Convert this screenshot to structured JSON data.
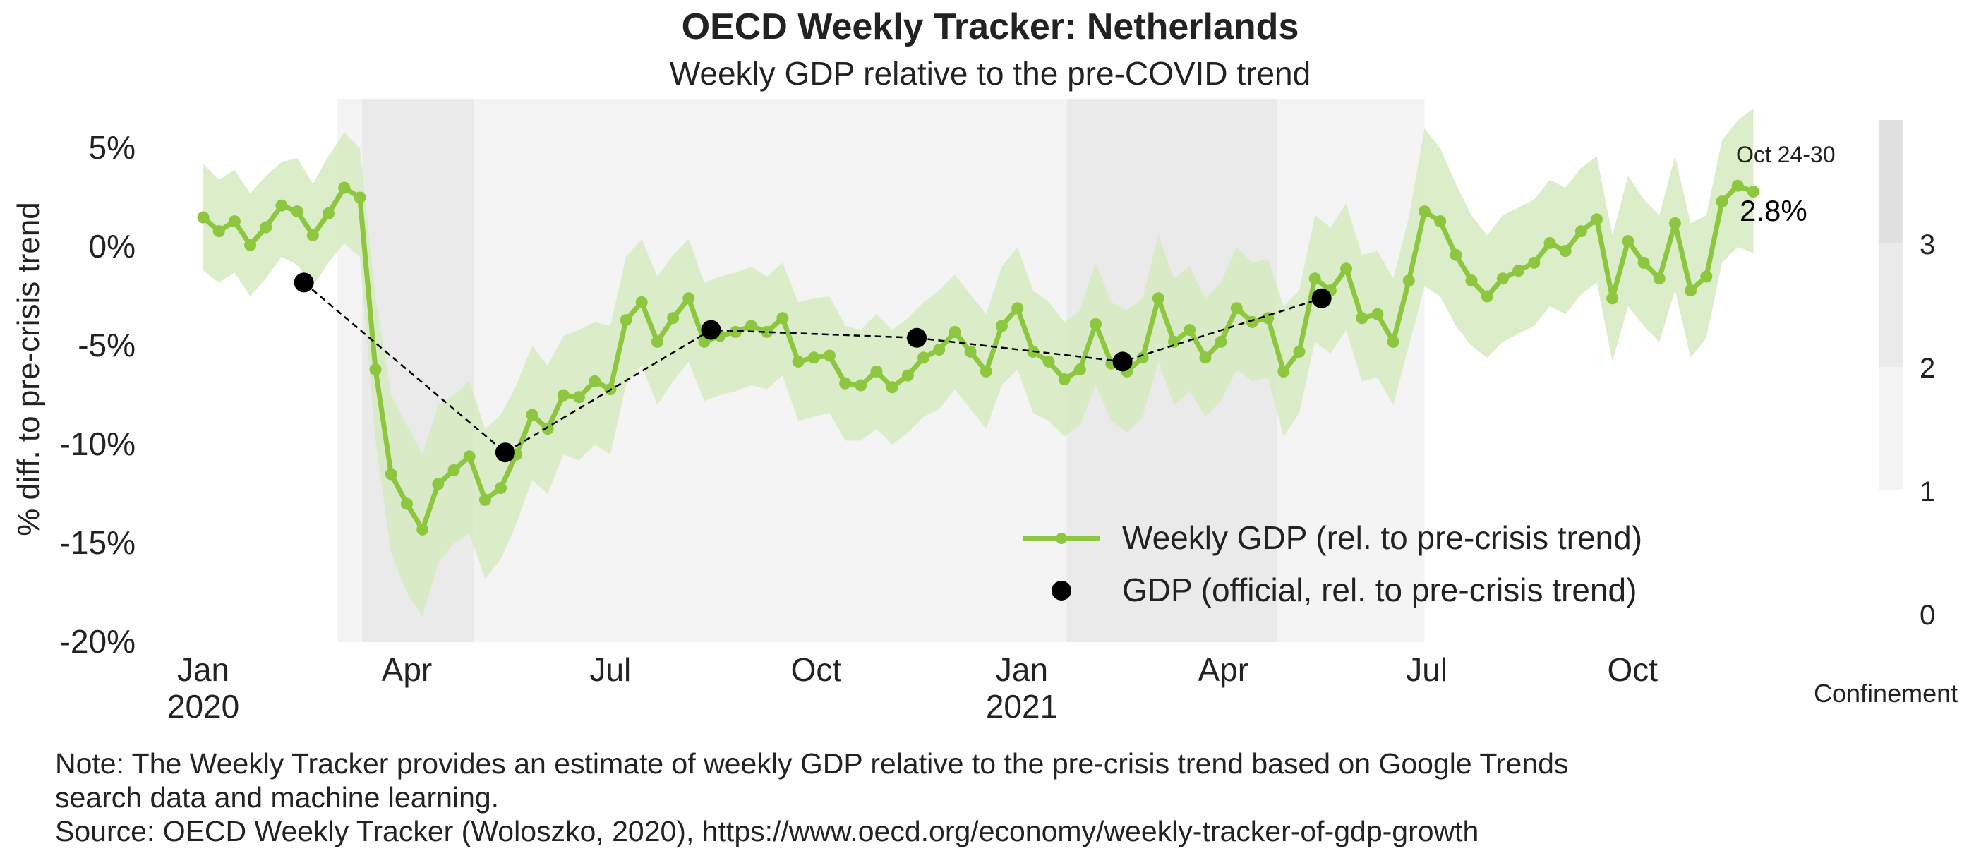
{
  "chart_data": {
    "type": "line",
    "title": "OECD Weekly Tracker: Netherlands",
    "subtitle": "Weekly GDP relative to the pre-COVID trend",
    "ylabel": "% diff. to pre-crisis trend",
    "xlabel": "",
    "ylim": [
      -20,
      7.5
    ],
    "yticks": [
      5,
      0,
      -5,
      -10,
      -15,
      -20
    ],
    "ytick_labels": [
      "5%",
      "0%",
      "-5%",
      "-10%",
      "-15%",
      "-20%"
    ],
    "xlim": [
      "2019-12-20",
      "2021-11-10"
    ],
    "xticks": [
      {
        "date": "2020-01-01",
        "label": "Jan",
        "sublabel": "2020"
      },
      {
        "date": "2020-04-01",
        "label": "Apr",
        "sublabel": ""
      },
      {
        "date": "2020-07-01",
        "label": "Jul",
        "sublabel": ""
      },
      {
        "date": "2020-10-01",
        "label": "Oct",
        "sublabel": ""
      },
      {
        "date": "2021-01-01",
        "label": "Jan",
        "sublabel": "2021"
      },
      {
        "date": "2021-04-01",
        "label": "Apr",
        "sublabel": ""
      },
      {
        "date": "2021-07-01",
        "label": "Jul",
        "sublabel": ""
      },
      {
        "date": "2021-10-01",
        "label": "Oct",
        "sublabel": ""
      }
    ],
    "grid": false,
    "legend_position": "bottom-right",
    "series": [
      {
        "name": "Weekly GDP (rel. to pre-crisis trend)",
        "kind": "line-markers",
        "color": "#8dc63f",
        "band_color": "#d6ebbf",
        "points": [
          {
            "x": "2020-01-01",
            "y": 1.5,
            "lo": -1.2,
            "hi": 4.2
          },
          {
            "x": "2020-01-08",
            "y": 0.8,
            "lo": -1.8,
            "hi": 3.4
          },
          {
            "x": "2020-01-15",
            "y": 1.3,
            "lo": -1.3,
            "hi": 3.9
          },
          {
            "x": "2020-01-22",
            "y": 0.1,
            "lo": -2.5,
            "hi": 2.7
          },
          {
            "x": "2020-01-29",
            "y": 1.0,
            "lo": -1.6,
            "hi": 3.6
          },
          {
            "x": "2020-02-05",
            "y": 2.1,
            "lo": -0.5,
            "hi": 4.3
          },
          {
            "x": "2020-02-12",
            "y": 1.8,
            "lo": -0.9,
            "hi": 4.5
          },
          {
            "x": "2020-02-19",
            "y": 0.6,
            "lo": -2.0,
            "hi": 3.2
          },
          {
            "x": "2020-02-26",
            "y": 1.7,
            "lo": -0.8,
            "hi": 4.6
          },
          {
            "x": "2020-03-04",
            "y": 3.0,
            "lo": 0.2,
            "hi": 5.8
          },
          {
            "x": "2020-03-11",
            "y": 2.5,
            "lo": -0.5,
            "hi": 5.0
          },
          {
            "x": "2020-03-18",
            "y": -6.2,
            "lo": -9.8,
            "hi": -2.6
          },
          {
            "x": "2020-03-25",
            "y": -11.5,
            "lo": -15.5,
            "hi": -7.5
          },
          {
            "x": "2020-04-01",
            "y": -13.0,
            "lo": -17.5,
            "hi": -9.0
          },
          {
            "x": "2020-04-08",
            "y": -14.3,
            "lo": -18.7,
            "hi": -10.5
          },
          {
            "x": "2020-04-15",
            "y": -12.0,
            "lo": -16.0,
            "hi": -8.0
          },
          {
            "x": "2020-04-22",
            "y": -11.3,
            "lo": -15.0,
            "hi": -7.5
          },
          {
            "x": "2020-04-29",
            "y": -10.6,
            "lo": -14.5,
            "hi": -6.8
          },
          {
            "x": "2020-05-06",
            "y": -12.8,
            "lo": -16.8,
            "hi": -9.2
          },
          {
            "x": "2020-05-13",
            "y": -12.2,
            "lo": -15.8,
            "hi": -8.5
          },
          {
            "x": "2020-05-20",
            "y": -10.5,
            "lo": -14.0,
            "hi": -7.0
          },
          {
            "x": "2020-05-27",
            "y": -8.5,
            "lo": -11.8,
            "hi": -5.0
          },
          {
            "x": "2020-06-03",
            "y": -9.2,
            "lo": -12.5,
            "hi": -6.0
          },
          {
            "x": "2020-06-10",
            "y": -7.5,
            "lo": -10.5,
            "hi": -4.5
          },
          {
            "x": "2020-06-17",
            "y": -7.6,
            "lo": -10.8,
            "hi": -4.2
          },
          {
            "x": "2020-06-24",
            "y": -6.8,
            "lo": -10.0,
            "hi": -3.8
          },
          {
            "x": "2020-07-01",
            "y": -7.2,
            "lo": -10.5,
            "hi": -4.0
          },
          {
            "x": "2020-07-08",
            "y": -3.7,
            "lo": -7.0,
            "hi": -0.5
          },
          {
            "x": "2020-07-15",
            "y": -2.8,
            "lo": -6.0,
            "hi": 0.4
          },
          {
            "x": "2020-07-22",
            "y": -4.8,
            "lo": -8.0,
            "hi": -1.5
          },
          {
            "x": "2020-07-29",
            "y": -3.6,
            "lo": -6.8,
            "hi": -0.4
          },
          {
            "x": "2020-08-05",
            "y": -2.6,
            "lo": -5.8,
            "hi": 0.4
          },
          {
            "x": "2020-08-12",
            "y": -4.8,
            "lo": -7.8,
            "hi": -1.8
          },
          {
            "x": "2020-08-19",
            "y": -4.5,
            "lo": -7.5,
            "hi": -1.5
          },
          {
            "x": "2020-08-26",
            "y": -4.3,
            "lo": -7.3,
            "hi": -1.3
          },
          {
            "x": "2020-09-02",
            "y": -4.0,
            "lo": -7.0,
            "hi": -1.0
          },
          {
            "x": "2020-09-09",
            "y": -4.3,
            "lo": -7.2,
            "hi": -1.5
          },
          {
            "x": "2020-09-16",
            "y": -3.6,
            "lo": -6.5,
            "hi": -0.8
          },
          {
            "x": "2020-09-23",
            "y": -5.8,
            "lo": -8.8,
            "hi": -2.8
          },
          {
            "x": "2020-09-30",
            "y": -5.6,
            "lo": -8.6,
            "hi": -2.6
          },
          {
            "x": "2020-10-07",
            "y": -5.5,
            "lo": -8.4,
            "hi": -2.5
          },
          {
            "x": "2020-10-14",
            "y": -6.9,
            "lo": -9.8,
            "hi": -4.0
          },
          {
            "x": "2020-10-21",
            "y": -7.0,
            "lo": -9.8,
            "hi": -4.2
          },
          {
            "x": "2020-10-28",
            "y": -6.3,
            "lo": -9.2,
            "hi": -3.4
          },
          {
            "x": "2020-11-04",
            "y": -7.1,
            "lo": -10.0,
            "hi": -4.2
          },
          {
            "x": "2020-11-11",
            "y": -6.5,
            "lo": -9.4,
            "hi": -3.6
          },
          {
            "x": "2020-11-18",
            "y": -5.6,
            "lo": -8.6,
            "hi": -2.8
          },
          {
            "x": "2020-11-25",
            "y": -5.2,
            "lo": -8.2,
            "hi": -2.2
          },
          {
            "x": "2020-12-02",
            "y": -4.3,
            "lo": -7.2,
            "hi": -1.4
          },
          {
            "x": "2020-12-09",
            "y": -5.3,
            "lo": -8.2,
            "hi": -2.4
          },
          {
            "x": "2020-12-16",
            "y": -6.3,
            "lo": -9.2,
            "hi": -3.4
          },
          {
            "x": "2020-12-23",
            "y": -4.0,
            "lo": -7.0,
            "hi": -1.0
          },
          {
            "x": "2020-12-30",
            "y": -3.1,
            "lo": -6.2,
            "hi": 0.0
          },
          {
            "x": "2021-01-06",
            "y": -5.3,
            "lo": -8.4,
            "hi": -2.2
          },
          {
            "x": "2021-01-13",
            "y": -5.8,
            "lo": -8.8,
            "hi": -2.8
          },
          {
            "x": "2021-01-20",
            "y": -6.7,
            "lo": -9.6,
            "hi": -3.8
          },
          {
            "x": "2021-01-27",
            "y": -6.2,
            "lo": -9.0,
            "hi": -3.2
          },
          {
            "x": "2021-02-03",
            "y": -3.9,
            "lo": -7.0,
            "hi": -0.8
          },
          {
            "x": "2021-02-10",
            "y": -5.9,
            "lo": -8.8,
            "hi": -2.8
          },
          {
            "x": "2021-02-17",
            "y": -6.3,
            "lo": -9.4,
            "hi": -3.2
          },
          {
            "x": "2021-02-24",
            "y": -5.6,
            "lo": -8.6,
            "hi": -2.6
          },
          {
            "x": "2021-03-03",
            "y": -2.6,
            "lo": -5.8,
            "hi": 0.6
          },
          {
            "x": "2021-03-10",
            "y": -4.8,
            "lo": -8.0,
            "hi": -1.6
          },
          {
            "x": "2021-03-17",
            "y": -4.2,
            "lo": -7.3,
            "hi": -1.0
          },
          {
            "x": "2021-03-24",
            "y": -5.6,
            "lo": -8.6,
            "hi": -2.6
          },
          {
            "x": "2021-03-31",
            "y": -4.8,
            "lo": -7.8,
            "hi": -1.8
          },
          {
            "x": "2021-04-07",
            "y": -3.1,
            "lo": -6.2,
            "hi": 0.0
          },
          {
            "x": "2021-04-14",
            "y": -3.8,
            "lo": -6.8,
            "hi": -0.8
          },
          {
            "x": "2021-04-21",
            "y": -3.6,
            "lo": -6.6,
            "hi": -0.6
          },
          {
            "x": "2021-04-28",
            "y": -6.3,
            "lo": -9.6,
            "hi": -3.0
          },
          {
            "x": "2021-05-05",
            "y": -5.3,
            "lo": -8.4,
            "hi": -2.2
          },
          {
            "x": "2021-05-12",
            "y": -1.6,
            "lo": -4.8,
            "hi": 1.6
          },
          {
            "x": "2021-05-19",
            "y": -2.2,
            "lo": -5.4,
            "hi": 1.0
          },
          {
            "x": "2021-05-26",
            "y": -1.1,
            "lo": -4.2,
            "hi": 2.2
          },
          {
            "x": "2021-06-02",
            "y": -3.6,
            "lo": -6.8,
            "hi": -0.4
          },
          {
            "x": "2021-06-09",
            "y": -3.4,
            "lo": -6.6,
            "hi": -0.2
          },
          {
            "x": "2021-06-16",
            "y": -4.8,
            "lo": -8.0,
            "hi": -1.6
          },
          {
            "x": "2021-06-23",
            "y": -1.7,
            "lo": -5.0,
            "hi": 1.5
          },
          {
            "x": "2021-06-30",
            "y": 1.8,
            "lo": -2.0,
            "hi": 6.0
          },
          {
            "x": "2021-07-07",
            "y": 1.3,
            "lo": -2.5,
            "hi": 5.0
          },
          {
            "x": "2021-07-14",
            "y": -0.4,
            "lo": -4.0,
            "hi": 3.2
          },
          {
            "x": "2021-07-21",
            "y": -1.7,
            "lo": -5.0,
            "hi": 1.6
          },
          {
            "x": "2021-07-28",
            "y": -2.5,
            "lo": -5.6,
            "hi": 0.6
          },
          {
            "x": "2021-08-04",
            "y": -1.6,
            "lo": -4.8,
            "hi": 1.6
          },
          {
            "x": "2021-08-11",
            "y": -1.2,
            "lo": -4.4,
            "hi": 2.0
          },
          {
            "x": "2021-08-18",
            "y": -0.8,
            "lo": -4.0,
            "hi": 2.4
          },
          {
            "x": "2021-08-25",
            "y": 0.2,
            "lo": -3.0,
            "hi": 3.4
          },
          {
            "x": "2021-09-01",
            "y": -0.2,
            "lo": -3.4,
            "hi": 3.0
          },
          {
            "x": "2021-09-08",
            "y": 0.8,
            "lo": -2.4,
            "hi": 4.0
          },
          {
            "x": "2021-09-15",
            "y": 1.4,
            "lo": -1.8,
            "hi": 4.6
          },
          {
            "x": "2021-09-22",
            "y": -2.6,
            "lo": -5.8,
            "hi": 0.6
          },
          {
            "x": "2021-09-29",
            "y": 0.3,
            "lo": -3.0,
            "hi": 3.6
          },
          {
            "x": "2021-10-06",
            "y": -0.8,
            "lo": -4.0,
            "hi": 2.4
          },
          {
            "x": "2021-10-13",
            "y": -1.6,
            "lo": -4.8,
            "hi": 1.6
          },
          {
            "x": "2021-10-20",
            "y": 1.2,
            "lo": -2.2,
            "hi": 4.6
          },
          {
            "x": "2021-10-27",
            "y": -2.2,
            "lo": -5.6,
            "hi": 1.2
          },
          {
            "x": "2021-11-03",
            "y": -1.5,
            "lo": -4.6,
            "hi": 1.6
          },
          {
            "x": "2021-11-10",
            "y": 2.3,
            "lo": -0.8,
            "hi": 5.4
          },
          {
            "x": "2021-11-17",
            "y": 3.1,
            "lo": 0.0,
            "hi": 6.4
          },
          {
            "x": "2021-11-24",
            "y": 2.8,
            "lo": -0.3,
            "hi": 7.0
          }
        ]
      },
      {
        "name": "GDP (official, rel. to pre-crisis trend)",
        "kind": "dots-dashed",
        "color": "#000000",
        "points": [
          {
            "x": "2020-02-15",
            "y": -1.8
          },
          {
            "x": "2020-05-15",
            "y": -10.4
          },
          {
            "x": "2020-08-15",
            "y": -4.2
          },
          {
            "x": "2020-11-15",
            "y": -4.6
          },
          {
            "x": "2021-02-15",
            "y": -5.8
          },
          {
            "x": "2021-05-15",
            "y": -2.6
          }
        ]
      }
    ],
    "confinement_periods": [
      {
        "start": "2020-03-01",
        "end": "2020-03-12",
        "level": 1
      },
      {
        "start": "2020-03-12",
        "end": "2020-05-01",
        "level": 2
      },
      {
        "start": "2020-05-01",
        "end": "2021-01-21",
        "level": 1
      },
      {
        "start": "2021-01-21",
        "end": "2021-04-25",
        "level": 2
      },
      {
        "start": "2021-04-25",
        "end": "2021-06-30",
        "level": 1
      }
    ],
    "confinement_colors": {
      "1": "#f4f4f4",
      "2": "#eaeaea",
      "3": "#e0e0e0"
    },
    "confinement_scale": {
      "title": "Confinement",
      "labels": [
        "3",
        "2",
        "1",
        "0"
      ]
    },
    "annotation": {
      "label": "Oct 24-30",
      "value": "2.8%"
    }
  },
  "note": {
    "line1": "Note: The Weekly Tracker provides an estimate of weekly GDP relative to the pre-crisis trend based on Google Trends",
    "line2": "search data and machine learning.",
    "line3": "Source: OECD Weekly Tracker (Woloszko, 2020), https://www.oecd.org/economy/weekly-tracker-of-gdp-growth"
  }
}
